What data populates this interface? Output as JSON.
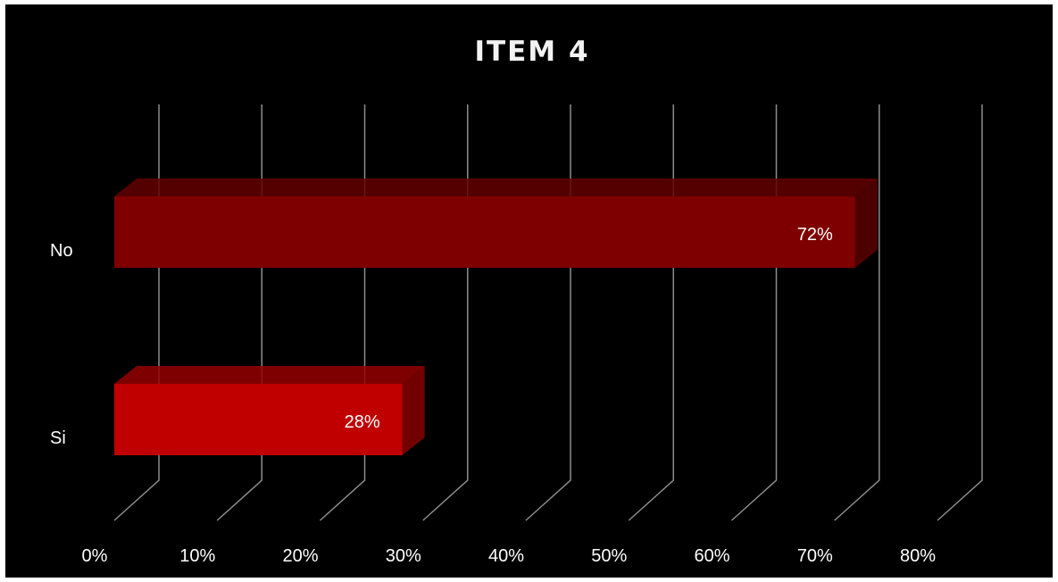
{
  "chart_data": {
    "type": "bar",
    "orientation": "horizontal",
    "style": "3d",
    "title": "ITEM 4",
    "categories": [
      "No",
      "Si"
    ],
    "values": [
      0.72,
      0.28
    ],
    "data_labels": [
      "72%",
      "28%"
    ],
    "colors": [
      "#7f0000",
      "#c00000"
    ],
    "xlim": [
      0,
      0.8
    ],
    "x_ticks": [
      "0%",
      "10%",
      "20%",
      "30%",
      "40%",
      "50%",
      "60%",
      "70%",
      "80%"
    ],
    "xlabel": "",
    "ylabel": "",
    "grid": true,
    "legend": false,
    "background": "#000000"
  }
}
